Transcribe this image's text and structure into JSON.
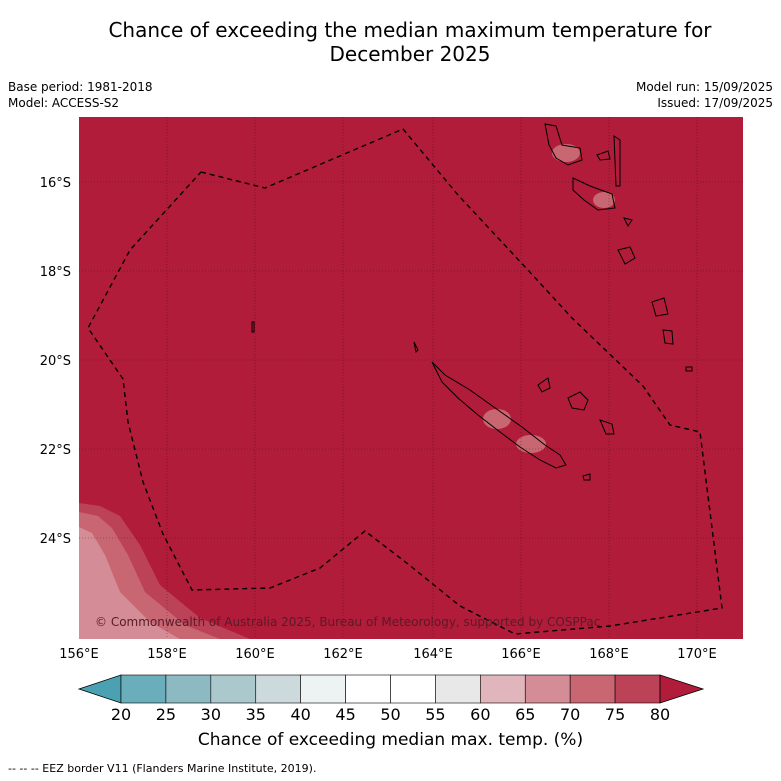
{
  "title_line1": "Chance of exceeding the median maximum temperature for",
  "title_line2": "December 2025",
  "base_period": "Base period: 1981-2018",
  "model": "Model: ACCESS-S2",
  "model_run": "Model run: 15/09/2025",
  "issued": "Issued: 17/09/2025",
  "copyright": "© Commonwealth of Australia 2025, Bureau of Meteorology, supported by COSPPac",
  "map": {
    "lon_labels": [
      "156°E",
      "158°E",
      "160°E",
      "162°E",
      "164°E",
      "166°E",
      "168°E",
      "170°E"
    ],
    "lat_labels": [
      "16°S",
      "18°S",
      "20°S",
      "22°S",
      "24°S"
    ],
    "background_color": "#b01c3a"
  },
  "colorbar": {
    "ticks": [
      "20",
      "25",
      "30",
      "35",
      "40",
      "45",
      "50",
      "55",
      "60",
      "65",
      "70",
      "75",
      "80"
    ],
    "colors": [
      "#4aa1b1",
      "#6aaebc",
      "#8db9c2",
      "#abc8cd",
      "#cddadd",
      "#edf2f3",
      "#ffffff",
      "#ffffff",
      "#e8e8e8",
      "#e0b5bb",
      "#d48d96",
      "#c86672",
      "#bc4257",
      "#b01c3a"
    ],
    "label": "Chance of exceeding median max. temp. (%)"
  },
  "footnote": "--  --  -- EEZ border V11 (Flanders Marine Institute, 2019)."
}
